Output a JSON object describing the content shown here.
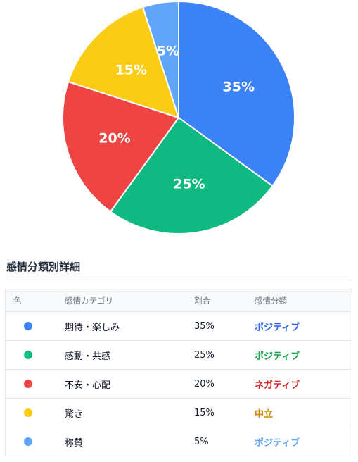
{
  "chart_data": {
    "type": "pie",
    "title": "",
    "categories": [
      "期待・楽しみ",
      "感動・共感",
      "不安・心配",
      "驚き",
      "称賛"
    ],
    "values": [
      35,
      25,
      20,
      15,
      5
    ],
    "labels": [
      "35%",
      "25%",
      "20%",
      "15%",
      "5%"
    ],
    "colors": [
      "#3b82f6",
      "#10b981",
      "#ef4444",
      "#facc15",
      "#60a5fa"
    ],
    "start_angle": "12 o'clock",
    "direction": "clockwise"
  },
  "details": {
    "title": "感情分類別詳細",
    "headers": {
      "color": "色",
      "category": "感情カテゴリ",
      "ratio": "割合",
      "classification": "感情分類"
    },
    "rows": [
      {
        "dot_color": "#3b82f6",
        "category": "期待・楽しみ",
        "ratio": "35%",
        "classification": "ポジティブ",
        "class_color": "#2563eb"
      },
      {
        "dot_color": "#10b981",
        "category": "感動・共感",
        "ratio": "25%",
        "classification": "ポジティブ",
        "class_color": "#16a34a"
      },
      {
        "dot_color": "#ef4444",
        "category": "不安・心配",
        "ratio": "20%",
        "classification": "ネガティブ",
        "class_color": "#dc2626"
      },
      {
        "dot_color": "#facc15",
        "category": "驚き",
        "ratio": "15%",
        "classification": "中立",
        "class_color": "#ca8a04"
      },
      {
        "dot_color": "#60a5fa",
        "category": "称賛",
        "ratio": "5%",
        "classification": "ポジティブ",
        "class_color": "#60a5fa"
      }
    ]
  }
}
